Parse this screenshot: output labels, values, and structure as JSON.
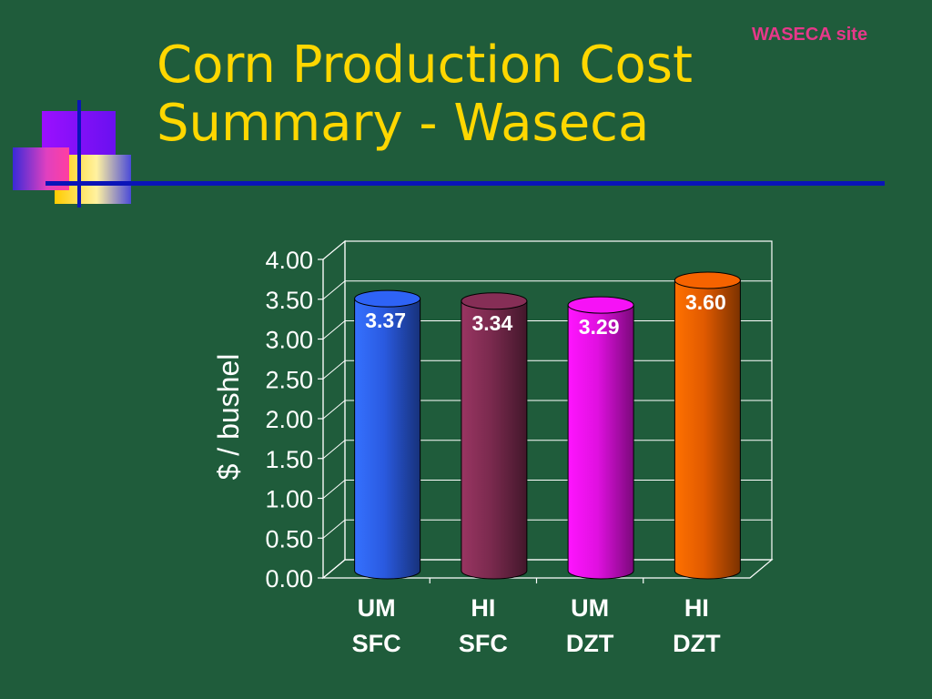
{
  "site_label": "WASECA site",
  "title_lines": [
    "Corn Production Cost",
    "Summary - Waseca"
  ],
  "colors": {
    "background": "#1f5c3b",
    "title": "#ffd700",
    "site_label": "#e6388a",
    "rule": "#0a14b8"
  },
  "chart_data": {
    "type": "bar",
    "style": "3d-cylinder",
    "categories": [
      [
        "UM",
        "SFC"
      ],
      [
        "HI",
        "SFC"
      ],
      [
        "UM",
        "DZT"
      ],
      [
        "HI",
        "DZT"
      ]
    ],
    "values": [
      3.37,
      3.34,
      3.29,
      3.6
    ],
    "data_labels": [
      "3.37",
      "3.34",
      "3.29",
      "3.60"
    ],
    "bar_colors": [
      "#2a5ae0",
      "#7a2a4e",
      "#e010e0",
      "#e05a00"
    ],
    "ylabel": "$ / bushel",
    "yticks": [
      "0.00",
      "0.50",
      "1.00",
      "1.50",
      "2.00",
      "2.50",
      "3.00",
      "3.50",
      "4.00"
    ],
    "ylim": [
      0,
      4
    ],
    "grid": true
  }
}
